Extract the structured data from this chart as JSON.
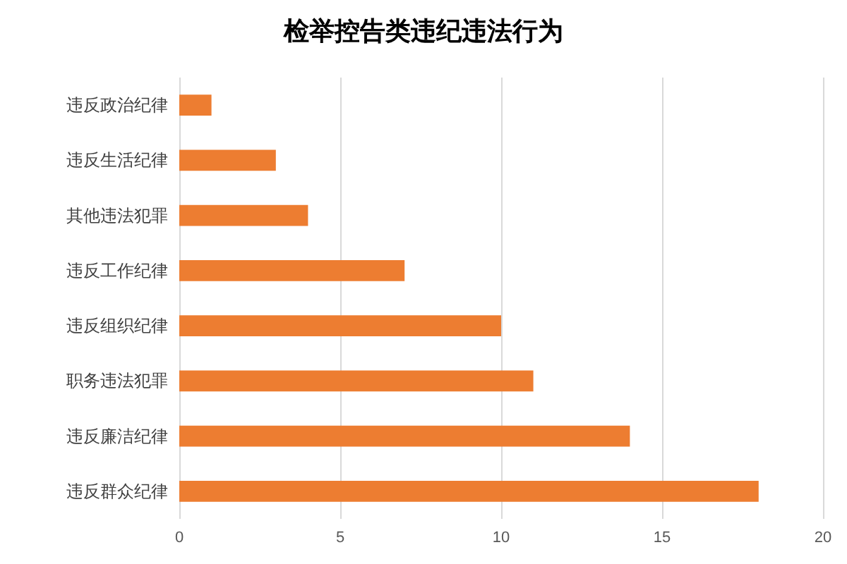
{
  "chart_data": {
    "type": "bar",
    "orientation": "horizontal",
    "title": "检举控告类违纪违法行为",
    "categories": [
      "违反政治纪律",
      "违反生活纪律",
      "其他违法犯罪",
      "违反工作纪律",
      "违反组织纪律",
      "职务违法犯罪",
      "违反廉洁纪律",
      "违反群众纪律"
    ],
    "values": [
      1,
      3,
      4,
      7,
      10,
      11,
      14,
      18
    ],
    "color": "#ed7d31",
    "xlim": [
      0,
      20
    ],
    "xticks": [
      0,
      5,
      10,
      15,
      20
    ],
    "grid": "x"
  }
}
